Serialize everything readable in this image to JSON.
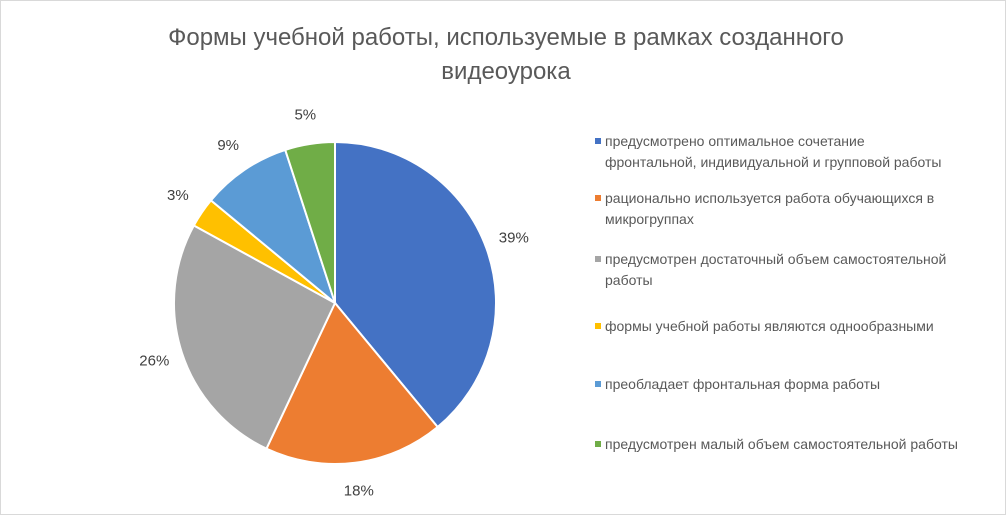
{
  "chart_data": {
    "type": "pie",
    "title_lines": [
      "Формы учебной работы, используемые в рамках созданного",
      "видеоурока"
    ],
    "slices": [
      {
        "label": "предусмотрено оптимальное сочетание фронтальной, индивидуальной и групповой работы",
        "value": 39,
        "value_label": "39%",
        "color": "#4472C4"
      },
      {
        "label": "рационально используется работа обучающихся в микрогруппах",
        "value": 18,
        "value_label": "18%",
        "color": "#ED7D31"
      },
      {
        "label": "предусмотрен достаточный объем самостоятельной работы",
        "value": 26,
        "value_label": "26%",
        "color": "#A5A5A5"
      },
      {
        "label": "формы учебной работы являются однообразными",
        "value": 3,
        "value_label": "3%",
        "color": "#FFC000"
      },
      {
        "label": "преобладает фронтальная форма работы",
        "value": 9,
        "value_label": "9%",
        "color": "#5B9BD5"
      },
      {
        "label": "предусмотрен малый объем самостоятельной работы",
        "value": 5,
        "value_label": "5%",
        "color": "#70AD47"
      }
    ],
    "legend_position": "right"
  },
  "legend_lines": [
    [
      "предусмотрено оптимальное сочетание",
      "фронтальной, индивидуальной и групповой работы"
    ],
    [
      "рационально используется работа обучающихся в",
      "микрогруппах"
    ],
    [
      "предусмотрен достаточный объем самостоятельной",
      "работы"
    ],
    [
      "формы учебной работы являются однообразными"
    ],
    [
      "преобладает фронтальная форма работы"
    ],
    [
      "предусмотрен малый объем самостоятельной работы"
    ]
  ]
}
